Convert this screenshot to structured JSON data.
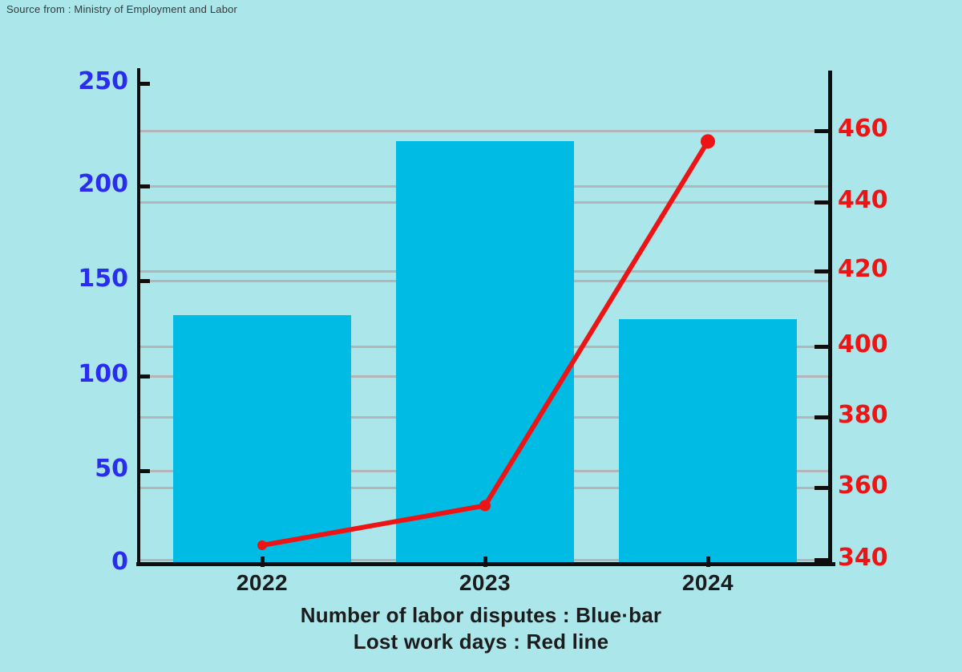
{
  "page": {
    "background": "#abe6ea"
  },
  "source_note": {
    "text": "Source from : Ministry of Employment and Labor"
  },
  "caption": {
    "line1": "Number of labor disputes : Blue·bar",
    "line2": "Lost work days : Red line"
  },
  "chart_data": {
    "type": "bar",
    "subtype": "combo-bar-line-dual-axis",
    "categories": [
      "2022",
      "2023",
      "2024"
    ],
    "series": [
      {
        "name": "Number of labor disputes",
        "type": "bar",
        "axis": "left",
        "values": [
          132,
          222,
          130
        ],
        "color": "#00bce4"
      },
      {
        "name": "Lost work days",
        "type": "line",
        "axis": "right",
        "values": [
          344,
          355,
          457
        ],
        "color": "#ec1414",
        "marker_radii": [
          6,
          7,
          9
        ]
      }
    ],
    "left_axis": {
      "ticks": [
        0,
        50,
        100,
        150,
        200,
        250
      ],
      "range": [
        0,
        250
      ],
      "label_color": "#2a2cee"
    },
    "right_axis": {
      "ticks": [
        340,
        360,
        380,
        400,
        420,
        440,
        460
      ],
      "range": [
        340,
        460
      ],
      "label_color": "#ec1414"
    },
    "gridlines": {
      "on": true,
      "color": "#b2b6b8",
      "at_left_tick_values": [
        50,
        100,
        150,
        200
      ],
      "at_right_tick_values": [
        340,
        360,
        380,
        400,
        420,
        440,
        460
      ]
    },
    "legend_position": "caption-below-chart",
    "axis_color": "#0e0e0e"
  }
}
